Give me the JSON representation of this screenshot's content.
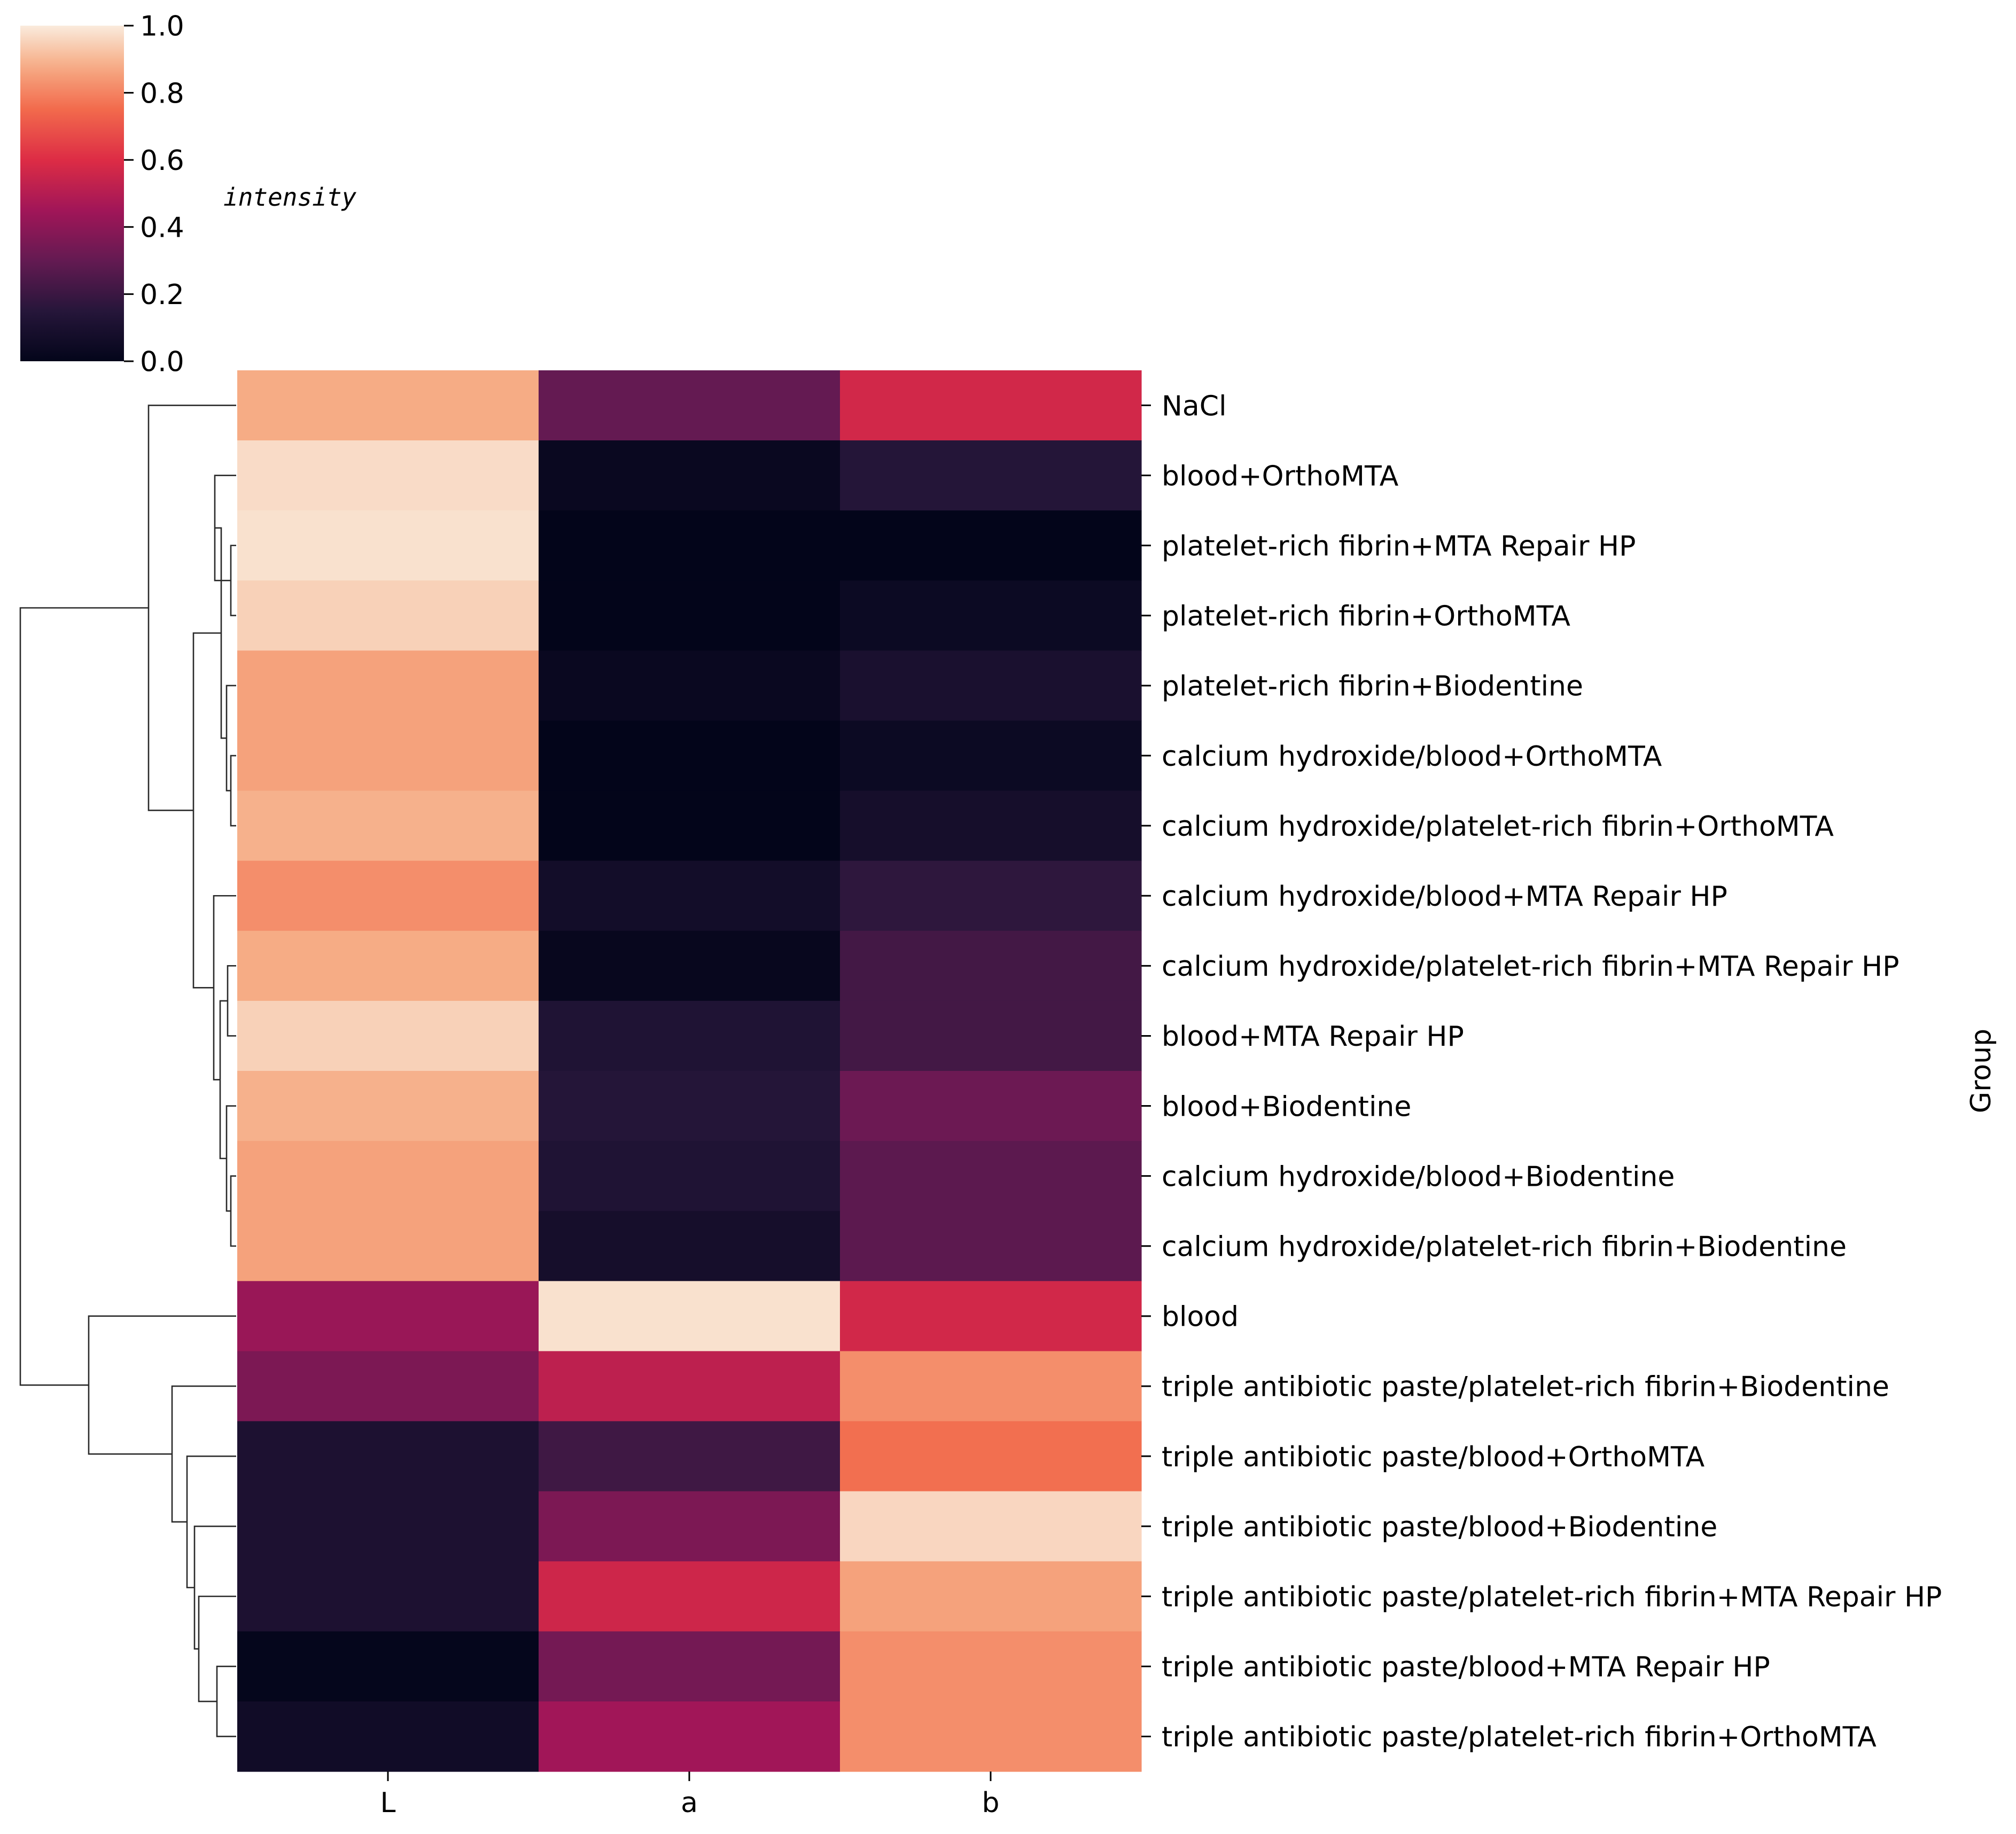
{
  "chart_data": {
    "type": "heatmap",
    "title": "",
    "xlabel": "",
    "ylabel": "Group",
    "columns": [
      "L",
      "a",
      "b"
    ],
    "rows": [
      "NaCl",
      "blood+OrthoMTA",
      "platelet-rich fibrin+MTA Repair HP",
      "platelet-rich fibrin+OrthoMTA",
      "platelet-rich fibrin+Biodentine",
      "calcium hydroxide/blood+OrthoMTA",
      "calcium hydroxide/platelet-rich fibrin+OrthoMTA",
      "calcium hydroxide/blood+MTA Repair HP",
      "calcium hydroxide/platelet-rich fibrin+MTA Repair HP",
      "blood+MTA Repair HP",
      "blood+Biodentine",
      "calcium hydroxide/blood+Biodentine",
      "calcium hydroxide/platelet-rich fibrin+Biodentine",
      "blood",
      "triple antibiotic paste/platelet-rich fibrin+Biodentine",
      "triple antibiotic paste/blood+OrthoMTA",
      "triple antibiotic paste/blood+Biodentine",
      "triple antibiotic paste/platelet-rich fibrin+MTA Repair HP",
      "triple antibiotic paste/blood+MTA Repair HP",
      "triple antibiotic paste/platelet-rich fibrin+OrthoMTA"
    ],
    "values": [
      [
        0.88,
        0.3,
        0.57
      ],
      [
        0.97,
        0.03,
        0.14
      ],
      [
        0.98,
        0.0,
        0.0
      ],
      [
        0.95,
        0.0,
        0.04
      ],
      [
        0.86,
        0.03,
        0.1
      ],
      [
        0.86,
        0.0,
        0.04
      ],
      [
        0.89,
        0.0,
        0.08
      ],
      [
        0.82,
        0.07,
        0.17
      ],
      [
        0.88,
        0.02,
        0.22
      ],
      [
        0.95,
        0.12,
        0.22
      ],
      [
        0.89,
        0.14,
        0.32
      ],
      [
        0.86,
        0.12,
        0.28
      ],
      [
        0.86,
        0.08,
        0.28
      ],
      [
        0.43,
        0.98,
        0.57
      ],
      [
        0.36,
        0.52,
        0.82
      ],
      [
        0.11,
        0.21,
        0.76
      ],
      [
        0.11,
        0.36,
        0.96
      ],
      [
        0.11,
        0.56,
        0.86
      ],
      [
        0.01,
        0.34,
        0.82
      ],
      [
        0.06,
        0.45,
        0.82
      ]
    ],
    "colorbar": {
      "label": "intensity",
      "range": [
        0.0,
        1.0
      ],
      "ticks": [
        0.0,
        0.2,
        0.4,
        0.6,
        0.8,
        1.0
      ],
      "tick_labels": [
        "0.0",
        "0.2",
        "0.4",
        "0.6",
        "0.8",
        "1.0"
      ],
      "colormap": "rocket"
    },
    "row_dendrogram": "hierarchical clustering of rows (left side)"
  }
}
